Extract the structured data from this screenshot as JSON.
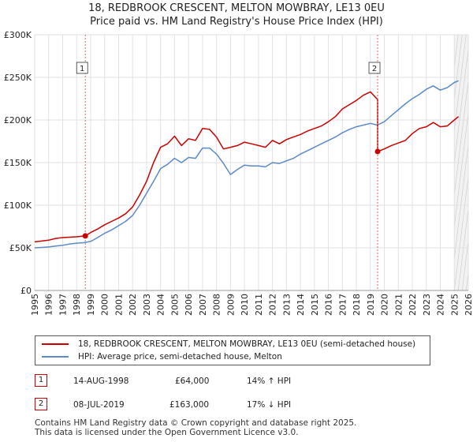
{
  "title_line1": "18, REDBROOK CRESCENT, MELTON MOWBRAY, LE13 0EU",
  "title_line2": "Price paid vs. HM Land Registry's House Price Index (HPI)",
  "chart_data": {
    "type": "line",
    "ylim": [
      0,
      300000
    ],
    "xlim": [
      1995,
      2026
    ],
    "y_ticks": [
      0,
      50000,
      100000,
      150000,
      200000,
      250000,
      300000
    ],
    "y_tick_labels": [
      "£0",
      "£50K",
      "£100K",
      "£150K",
      "£200K",
      "£250K",
      "£300K"
    ],
    "x_ticks": [
      1995,
      1996,
      1997,
      1998,
      1999,
      2000,
      2001,
      2002,
      2003,
      2004,
      2005,
      2006,
      2007,
      2008,
      2009,
      2010,
      2011,
      2012,
      2013,
      2014,
      2015,
      2016,
      2017,
      2018,
      2019,
      2020,
      2021,
      2022,
      2023,
      2024,
      2025,
      2026
    ],
    "series": [
      {
        "name": "18, REDBROOK CRESCENT, MELTON MOWBRAY, LE13 0EU (semi-detached house)",
        "color": "#cc0000",
        "x": [
          1995.0,
          1995.5,
          1996.0,
          1996.5,
          1997.0,
          1997.5,
          1998.0,
          1998.62,
          1999.0,
          1999.5,
          2000.0,
          2000.5,
          2001.0,
          2001.5,
          2002.0,
          2002.5,
          2003.0,
          2003.5,
          2004.0,
          2004.5,
          2005.0,
          2005.5,
          2006.0,
          2006.5,
          2007.0,
          2007.5,
          2008.0,
          2008.5,
          2009.0,
          2009.5,
          2010.0,
          2010.5,
          2011.0,
          2011.5,
          2012.0,
          2012.5,
          2013.0,
          2013.5,
          2014.0,
          2014.5,
          2015.0,
          2015.5,
          2016.0,
          2016.5,
          2017.0,
          2017.5,
          2018.0,
          2018.5,
          2019.0,
          2019.4,
          2019.52,
          2019.52,
          2020.0,
          2020.5,
          2021.0,
          2021.5,
          2022.0,
          2022.5,
          2023.0,
          2023.5,
          2024.0,
          2024.5,
          2025.0,
          2025.3
        ],
        "y": [
          57000,
          58000,
          59000,
          61000,
          62000,
          62500,
          63000,
          64000,
          68000,
          72000,
          77000,
          81000,
          85000,
          90000,
          98000,
          112000,
          128000,
          150000,
          168000,
          172000,
          181000,
          170000,
          178000,
          176000,
          190000,
          189000,
          180000,
          166000,
          168000,
          170000,
          174000,
          172000,
          170000,
          168000,
          176000,
          172000,
          177000,
          180000,
          183000,
          187000,
          190000,
          193000,
          198000,
          204000,
          213000,
          218000,
          223000,
          229000,
          233000,
          226000,
          224000,
          163000,
          166000,
          170000,
          173000,
          176000,
          184000,
          190000,
          192000,
          197000,
          192000,
          193000,
          200000,
          204000
        ]
      },
      {
        "name": "HPI: Average price, semi-detached house, Melton",
        "color": "#5b8ac9",
        "x": [
          1995.0,
          1995.5,
          1996.0,
          1996.5,
          1997.0,
          1997.5,
          1998.0,
          1998.5,
          1999.0,
          1999.5,
          2000.0,
          2000.5,
          2001.0,
          2001.5,
          2002.0,
          2002.5,
          2003.0,
          2003.5,
          2004.0,
          2004.5,
          2005.0,
          2005.5,
          2006.0,
          2006.5,
          2007.0,
          2007.5,
          2008.0,
          2008.5,
          2009.0,
          2009.5,
          2010.0,
          2010.5,
          2011.0,
          2011.5,
          2012.0,
          2012.5,
          2013.0,
          2013.5,
          2014.0,
          2014.5,
          2015.0,
          2015.5,
          2016.0,
          2016.5,
          2017.0,
          2017.5,
          2018.0,
          2018.5,
          2019.0,
          2019.5,
          2020.0,
          2020.5,
          2021.0,
          2021.5,
          2022.0,
          2022.5,
          2023.0,
          2023.5,
          2024.0,
          2024.5,
          2025.0,
          2025.3
        ],
        "y": [
          50000,
          50500,
          51000,
          52000,
          53000,
          54500,
          55500,
          56000,
          57500,
          62000,
          67000,
          71000,
          76000,
          81000,
          88000,
          100000,
          114000,
          128000,
          143000,
          148000,
          155000,
          150000,
          156000,
          155000,
          167000,
          167000,
          160000,
          149000,
          136000,
          142000,
          147000,
          146000,
          146000,
          145000,
          150000,
          149000,
          152000,
          155000,
          160000,
          164000,
          168000,
          172000,
          176000,
          180000,
          185000,
          189000,
          192000,
          194000,
          196000,
          194000,
          198000,
          205000,
          212000,
          219000,
          225000,
          230000,
          236000,
          240000,
          235000,
          238000,
          244000,
          246000
        ]
      }
    ],
    "sales": [
      {
        "label": "1",
        "x": 1998.62,
        "y": 64000
      },
      {
        "label": "2",
        "x": 2019.52,
        "y": 163000
      }
    ]
  },
  "legend": {
    "property": "18, REDBROOK CRESCENT, MELTON MOWBRAY, LE13 0EU (semi-detached house)",
    "hpi": "HPI: Average price, semi-detached house, Melton"
  },
  "transactions": [
    {
      "num": "1",
      "date": "14-AUG-1998",
      "price": "£64,000",
      "change": "14% ↑ HPI"
    },
    {
      "num": "2",
      "date": "08-JUL-2019",
      "price": "£163,000",
      "change": "17% ↓ HPI"
    }
  ],
  "footer": {
    "line1": "Contains HM Land Registry data © Crown copyright and database right 2025.",
    "line2": "This data is licensed under the Open Government Licence v3.0."
  }
}
